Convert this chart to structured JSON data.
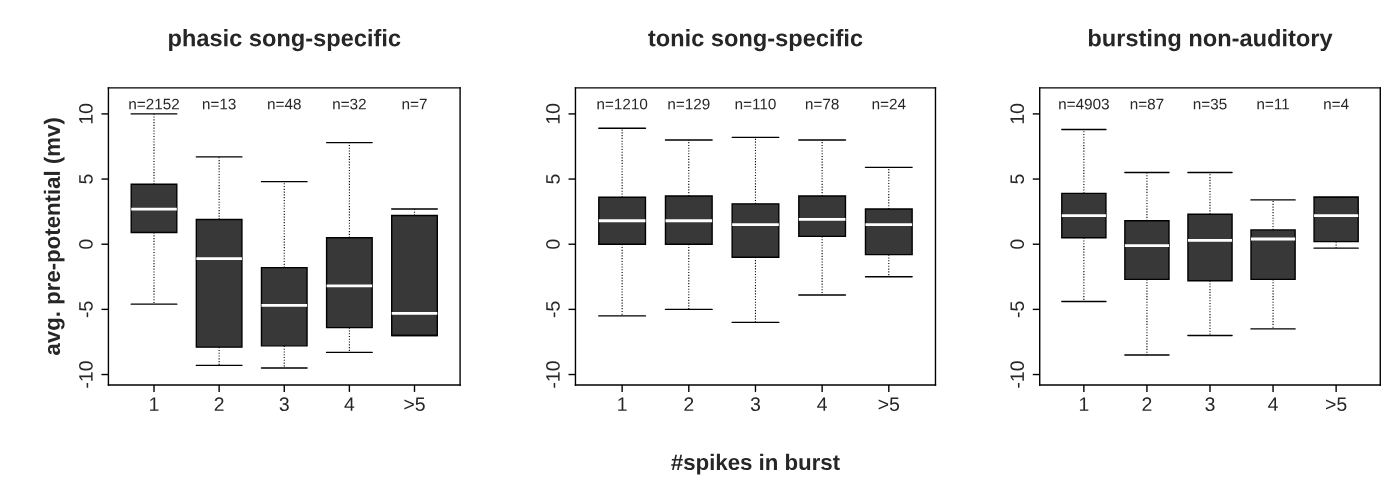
{
  "chart_data": [
    {
      "type": "box",
      "title": "phasic song-specific",
      "ylabel": "avg. pre-potential (mv)",
      "categories": [
        "1",
        "2",
        "3",
        "4",
        ">5"
      ],
      "color": "#383838",
      "ylim": [
        -10.8,
        12
      ],
      "yticks": [
        -10,
        -5,
        0,
        5,
        10
      ],
      "grid": false,
      "boxes": [
        {
          "low": -4.6,
          "q1": 0.9,
          "median": 2.7,
          "q3": 4.6,
          "high": 10
        },
        {
          "low": -9.3,
          "q1": -7.9,
          "median": -1.1,
          "q3": 1.9,
          "high": 6.7
        },
        {
          "low": -9.5,
          "q1": -7.8,
          "median": -4.7,
          "q3": -1.8,
          "high": 4.8
        },
        {
          "low": -8.3,
          "q1": -6.4,
          "median": -3.2,
          "q3": 0.5,
          "high": 7.8
        },
        {
          "low": -7.0,
          "q1": -7.0,
          "median": -5.3,
          "q3": 2.2,
          "high": 2.7
        }
      ],
      "annotations": [
        "n=2152",
        "n=13",
        "n=48",
        "n=32",
        "n=7"
      ]
    },
    {
      "type": "box",
      "title": "tonic song-specific",
      "xlabel": "#spikes in burst",
      "categories": [
        "1",
        "2",
        "3",
        "4",
        ">5"
      ],
      "color": "#383838",
      "ylim": [
        -10.8,
        12
      ],
      "yticks": [
        -10,
        -5,
        0,
        5,
        10
      ],
      "grid": false,
      "boxes": [
        {
          "low": -5.5,
          "q1": 0,
          "median": 1.8,
          "q3": 3.6,
          "high": 8.9
        },
        {
          "low": -5.0,
          "q1": 0,
          "median": 1.8,
          "q3": 3.7,
          "high": 8.0
        },
        {
          "low": -6.0,
          "q1": -1.0,
          "median": 1.5,
          "q3": 3.1,
          "high": 8.2
        },
        {
          "low": -3.9,
          "q1": 0.6,
          "median": 1.9,
          "q3": 3.7,
          "high": 8.0
        },
        {
          "low": -2.5,
          "q1": -0.8,
          "median": 1.5,
          "q3": 2.7,
          "high": 5.9
        }
      ],
      "annotations": [
        "n=1210",
        "n=129",
        "n=110",
        "n=78",
        "n=24"
      ]
    },
    {
      "type": "box",
      "title": "bursting non-auditory",
      "categories": [
        "1",
        "2",
        "3",
        "4",
        ">5"
      ],
      "color": "#383838",
      "ylim": [
        -10.8,
        12
      ],
      "yticks": [
        -10,
        -5,
        0,
        5,
        10
      ],
      "grid": false,
      "boxes": [
        {
          "low": -4.4,
          "q1": 0.5,
          "median": 2.2,
          "q3": 3.9,
          "high": 8.8
        },
        {
          "low": -8.5,
          "q1": -2.7,
          "median": -0.1,
          "q3": 1.8,
          "high": 5.5
        },
        {
          "low": -7.0,
          "q1": -2.8,
          "median": 0.3,
          "q3": 2.3,
          "high": 5.5
        },
        {
          "low": -6.5,
          "q1": -2.7,
          "median": 0.4,
          "q3": 1.1,
          "high": 3.4
        },
        {
          "low": -0.3,
          "q1": 0.2,
          "median": 2.2,
          "q3": 3.6,
          "high": 3.6
        }
      ],
      "annotations": [
        "n=4903",
        "n=87",
        "n=35",
        "n=11",
        "n=4"
      ]
    }
  ]
}
